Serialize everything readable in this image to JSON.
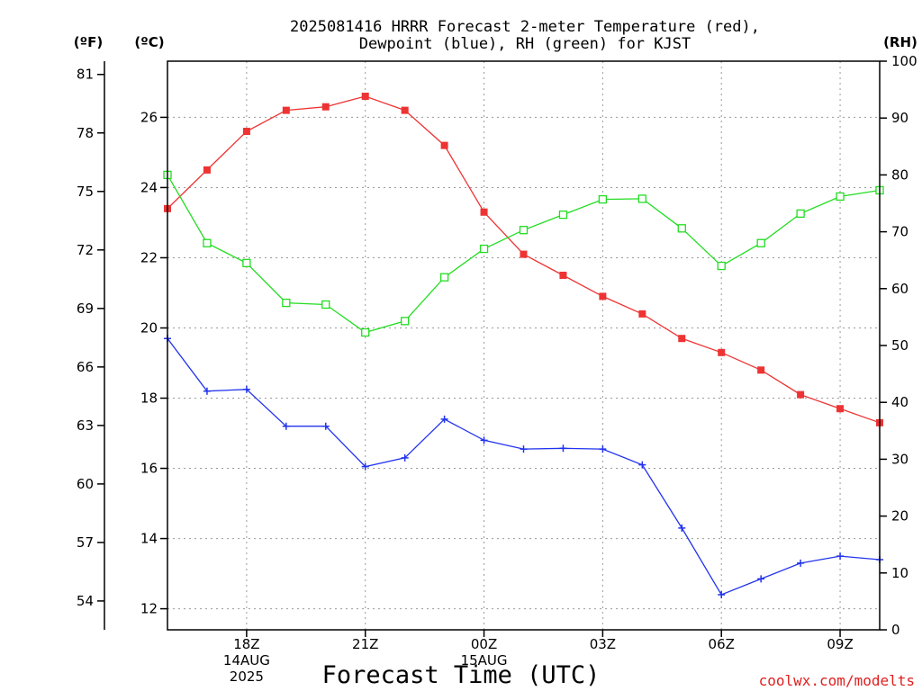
{
  "chart_data": {
    "type": "line",
    "title_line1": "2025081416 HRRR Forecast 2-meter Temperature (red),",
    "title_line2": "Dewpoint (blue), RH (green) for KJST",
    "xlabel": "Forecast Time (UTC)",
    "credit": "coolwx.com/modelts",
    "unit_f": "(ºF)",
    "unit_c": "(ºC)",
    "unit_rh": "(RH)",
    "x_hours": [
      16,
      17,
      18,
      19,
      20,
      21,
      22,
      23,
      24,
      25,
      26,
      27,
      28,
      29,
      30,
      31,
      32,
      33,
      34
    ],
    "xlim": [
      16,
      34
    ],
    "x_ticks": [
      {
        "hour": 18,
        "lines": [
          "18Z",
          "14AUG",
          "2025"
        ]
      },
      {
        "hour": 21,
        "lines": [
          "21Z"
        ]
      },
      {
        "hour": 24,
        "lines": [
          "00Z",
          "15AUG"
        ]
      },
      {
        "hour": 27,
        "lines": [
          "03Z"
        ]
      },
      {
        "hour": 30,
        "lines": [
          "06Z"
        ]
      },
      {
        "hour": 33,
        "lines": [
          "09Z"
        ]
      }
    ],
    "celsius_ticks": [
      12,
      14,
      16,
      18,
      20,
      22,
      24,
      26
    ],
    "fahrenheit_ticks": [
      54,
      57,
      60,
      63,
      66,
      69,
      72,
      75,
      78,
      81
    ],
    "rh_ticks": [
      0,
      10,
      20,
      30,
      40,
      50,
      60,
      70,
      80,
      90,
      100
    ],
    "celsius_range": [
      11.4,
      27.6
    ],
    "rh_range": [
      0,
      100
    ],
    "series": [
      {
        "name": "Temperature",
        "axis": "celsius",
        "color": "#ee3333",
        "marker": "filled-square",
        "values": [
          23.4,
          24.5,
          25.6,
          26.2,
          26.3,
          26.6,
          26.2,
          25.2,
          23.3,
          22.1,
          21.5,
          20.9,
          20.4,
          19.7,
          19.3,
          18.8,
          18.1,
          17.7,
          17.3
        ]
      },
      {
        "name": "Dewpoint",
        "axis": "celsius",
        "color": "#2233ee",
        "marker": "plus",
        "values": [
          19.7,
          18.2,
          18.25,
          17.2,
          17.2,
          16.05,
          16.3,
          17.4,
          16.8,
          16.55,
          16.57,
          16.55,
          16.1,
          14.3,
          12.4,
          12.85,
          13.3,
          13.5,
          13.4
        ]
      },
      {
        "name": "RH",
        "axis": "rh",
        "color": "#22dd22",
        "marker": "open-square",
        "values": [
          80,
          68,
          64.5,
          57.5,
          57.2,
          52.3,
          54.3,
          62,
          67,
          70.3,
          73,
          75.7,
          75.8,
          70.6,
          64,
          68,
          73.2,
          76.2,
          77.3
        ]
      }
    ],
    "grid": true
  }
}
